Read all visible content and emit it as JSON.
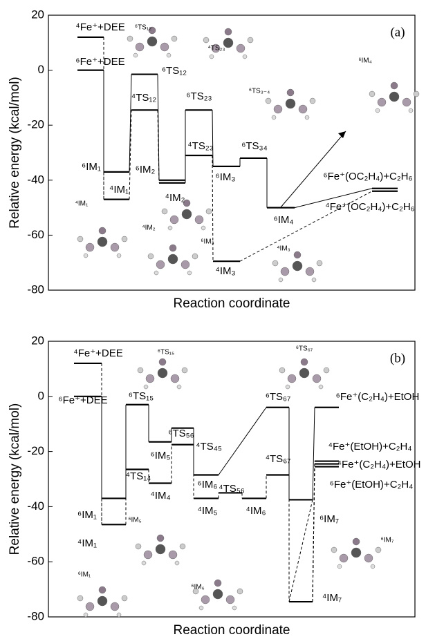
{
  "chart_data": [
    {
      "type": "energy-diagram",
      "panel_label": "(a)",
      "xlabel": "Reaction coordinate",
      "ylabel": "Relative energy (kcal/mol)",
      "ylim": [
        -80,
        20
      ],
      "yticks": [
        20,
        0,
        -20,
        -40,
        -60,
        -80
      ],
      "levels": [
        {
          "label": "⁴Fe⁺+DEE",
          "value": 12
        },
        {
          "label": "⁶Fe⁺+DEE",
          "value": 0
        },
        {
          "label": "⁶IM₁",
          "value": -37
        },
        {
          "label": "⁴IM₁",
          "value": -47
        },
        {
          "label": "⁴TS₁₂",
          "value": -14.5
        },
        {
          "label": "⁶TS₁₂",
          "value": -1.5
        },
        {
          "label": "⁶IM₂",
          "value": -40
        },
        {
          "label": "⁴IM₂",
          "value": -41
        },
        {
          "label": "⁶TS₂₃",
          "value": -14.5
        },
        {
          "label": "⁴TS₂₃",
          "value": -31
        },
        {
          "label": "⁶IM₃",
          "value": -35
        },
        {
          "label": "⁴IM₃",
          "value": -69.5
        },
        {
          "label": "⁶TS₃₄",
          "value": -32
        },
        {
          "label": "⁶IM₄",
          "value": -50
        },
        {
          "label": "⁶Fe⁺(OC₂H₄)+C₂H₆",
          "value": -43
        },
        {
          "label": "⁴Fe⁺(OC₂H₄)+C₂H₆",
          "value": -44
        }
      ],
      "annotations": [
        "⁶TS₁₂",
        "⁴TS₂₃",
        "⁶TS₃₋₄",
        "⁶IM₄",
        "⁶IM₃",
        "⁴IM₁",
        "⁴IM₂",
        "⁴IM₃"
      ]
    },
    {
      "type": "energy-diagram",
      "panel_label": "(b)",
      "xlabel": "Reaction coordinate",
      "ylabel": "Relative energy (kcal/mol)",
      "ylim": [
        -80,
        20
      ],
      "yticks": [
        20,
        0,
        -20,
        -40,
        -60,
        -80
      ],
      "levels": [
        {
          "label": "⁴Fe⁺+DEE",
          "value": 12
        },
        {
          "label": "⁶Fe⁺+DEE",
          "value": 0
        },
        {
          "label": "⁶IM₁",
          "value": -37
        },
        {
          "label": "⁴IM₁",
          "value": -46.5
        },
        {
          "label": "⁶TS₁₅",
          "value": -3
        },
        {
          "label": "⁴TS₁₄",
          "value": -26.5
        },
        {
          "label": "⁶IM₅",
          "value": -16.5
        },
        {
          "label": "⁴IM₄",
          "value": -31.5
        },
        {
          "label": "⁶TS₅₆",
          "value": -11.5
        },
        {
          "label": "⁴TS₄₅",
          "value": -17.5
        },
        {
          "label": "⁶IM₆",
          "value": -28.5
        },
        {
          "label": "⁴IM₅",
          "value": -37
        },
        {
          "label": "⁴TS₅₆",
          "value": -35
        },
        {
          "label": "⁴IM₆",
          "value": -37
        },
        {
          "label": "⁶TS₆₇",
          "value": -4
        },
        {
          "label": "⁴TS₆₇",
          "value": -28.5
        },
        {
          "label": "⁶IM₇",
          "value": -37.5
        },
        {
          "label": "⁴IM₇",
          "value": -74.5
        },
        {
          "label": "⁶Fe⁺(C₂H₄)+EtOH",
          "value": -4
        },
        {
          "label": "⁴Fe⁺(EtOH)+C₂H₄",
          "value": -23.5
        },
        {
          "label": "⁴Fe⁺(C₂H₄)+EtOH",
          "value": -24.5
        },
        {
          "label": "⁶Fe⁺(EtOH)+C₂H₄",
          "value": -25.5
        }
      ],
      "annotations": [
        "⁶TS₁₅",
        "⁶TS₆₇",
        "⁶IM₅",
        "⁶IM₇",
        "⁶IM₁",
        "⁶IM₆"
      ]
    }
  ]
}
